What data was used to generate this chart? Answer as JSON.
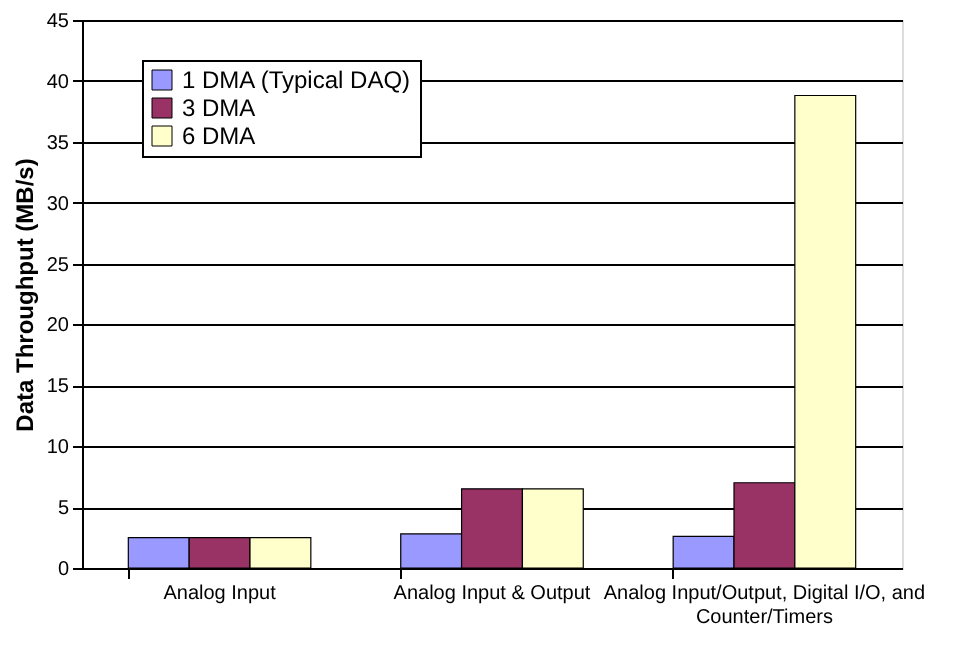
{
  "chart_data": {
    "type": "bar",
    "ylabel": "Data Throughput (MB/s)",
    "categories": [
      "Analog Input",
      "Analog Input & Output",
      "Analog Input/Output, Digital I/O, and Counter/Timers"
    ],
    "series": [
      {
        "name": "1 DMA (Typical DAQ)",
        "color": "#9999ff",
        "values": [
          2.5,
          2.8,
          2.6
        ]
      },
      {
        "name": "3 DMA",
        "color": "#993366",
        "values": [
          2.5,
          6.5,
          7.0
        ]
      },
      {
        "name": "6 DMA",
        "color": "#ffffcc",
        "values": [
          2.5,
          6.5,
          38.8
        ]
      }
    ],
    "ylim": [
      0,
      45
    ],
    "yticks": [
      0,
      5,
      10,
      15,
      20,
      25,
      30,
      35,
      40,
      45
    ],
    "grid": "y",
    "legend": "top left"
  }
}
